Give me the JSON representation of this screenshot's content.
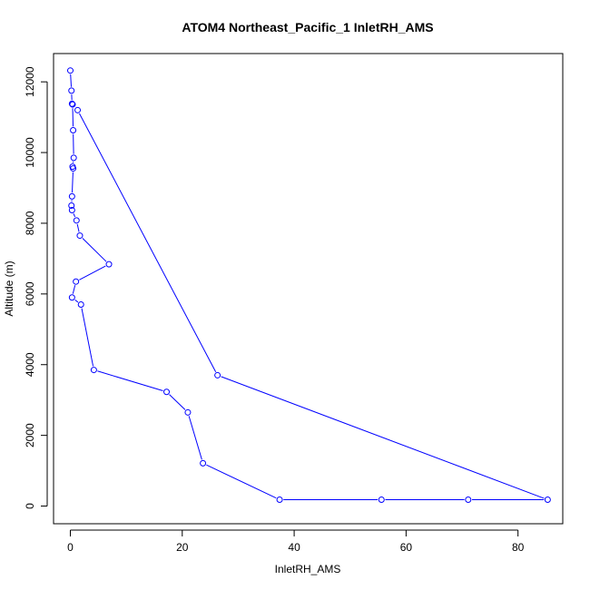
{
  "chart_data": {
    "type": "line",
    "title": "ATOM4 Northeast_Pacific_1 InletRH_AMS",
    "xlabel": "InletRH_AMS",
    "ylabel": "Altitude (m)",
    "xlim": [
      -3,
      88
    ],
    "ylim": [
      -500,
      12800
    ],
    "xticks": [
      0,
      20,
      40,
      60,
      80
    ],
    "yticks": [
      0,
      2000,
      4000,
      6000,
      8000,
      10000,
      12000
    ],
    "series_color": "#0000FF",
    "markers": "open-circle",
    "grid": false,
    "legend": "none",
    "series": [
      {
        "points": [
          [
            0.0,
            12320
          ],
          [
            0.2,
            11750
          ],
          [
            0.3,
            11380
          ],
          [
            0.4,
            11360
          ],
          [
            0.5,
            10630
          ],
          [
            0.6,
            9850
          ],
          [
            0.4,
            9600
          ],
          [
            0.5,
            9550
          ],
          [
            0.3,
            8760
          ],
          [
            0.2,
            8500
          ],
          [
            0.3,
            8370
          ],
          [
            1.1,
            8080
          ],
          [
            1.7,
            7650
          ],
          [
            6.9,
            6840
          ],
          [
            1.0,
            6350
          ],
          [
            0.3,
            5900
          ],
          [
            1.9,
            5700
          ],
          [
            4.2,
            3850
          ],
          [
            17.2,
            3230
          ],
          [
            21.0,
            2650
          ],
          [
            23.7,
            1210
          ],
          [
            37.4,
            180
          ],
          [
            55.6,
            180
          ],
          [
            71.1,
            180
          ],
          [
            85.3,
            180
          ],
          [
            26.3,
            3700
          ],
          [
            1.3,
            11200
          ]
        ]
      }
    ]
  }
}
